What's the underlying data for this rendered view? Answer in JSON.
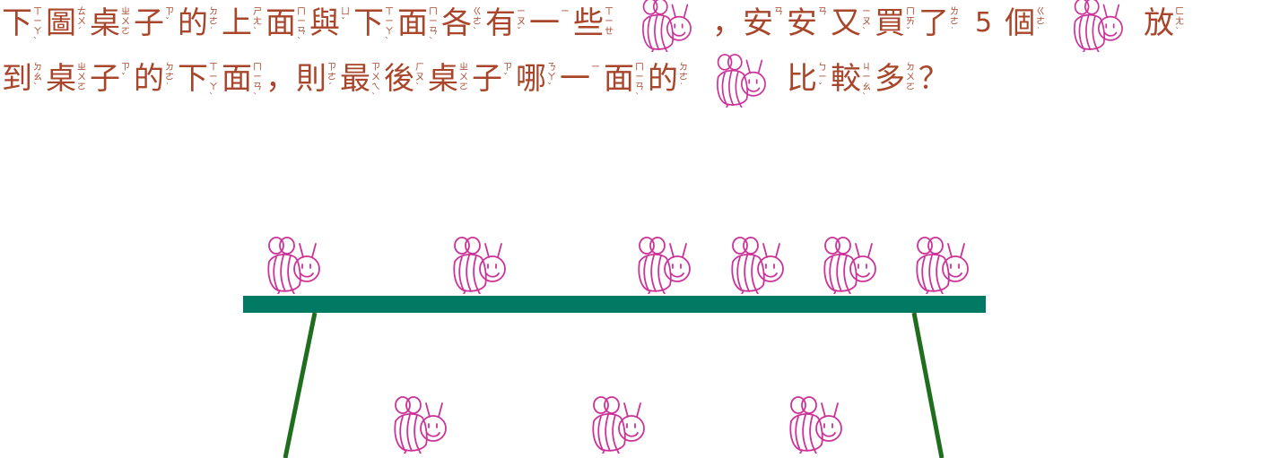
{
  "question": {
    "line1": [
      {
        "t": "char",
        "zh": "下",
        "zy": "ㄒㄧㄚˋ"
      },
      {
        "t": "char",
        "zh": "圖",
        "zy": "ㄊㄨˊ"
      },
      {
        "t": "char",
        "zh": "桌",
        "zy": "ㄓㄨㄛ"
      },
      {
        "t": "char",
        "zh": "子",
        "zy": "ㄗˇ"
      },
      {
        "t": "char",
        "zh": "的",
        "zy": "ㄉㄜ˙"
      },
      {
        "t": "char",
        "zh": "上",
        "zy": "ㄕㄤˋ"
      },
      {
        "t": "char",
        "zh": "面",
        "zy": "ㄇㄧㄢˋ"
      },
      {
        "t": "char",
        "zh": "與",
        "zy": "ㄩˇ"
      },
      {
        "t": "char",
        "zh": "下",
        "zy": "ㄒㄧㄚˋ"
      },
      {
        "t": "char",
        "zh": "面",
        "zy": "ㄇㄧㄢˋ"
      },
      {
        "t": "char",
        "zh": "各",
        "zy": "ㄍㄜˋ"
      },
      {
        "t": "char",
        "zh": "有",
        "zy": "ㄧㄡˇ"
      },
      {
        "t": "char",
        "zh": "一",
        "zy": "ㄧ"
      },
      {
        "t": "char",
        "zh": "些",
        "zy": "ㄒㄧㄝ"
      },
      {
        "t": "bee"
      },
      {
        "t": "plain",
        "text": "，"
      },
      {
        "t": "char",
        "zh": "安",
        "zy": "ㄢ"
      },
      {
        "t": "char",
        "zh": "安",
        "zy": "ㄢ"
      },
      {
        "t": "char",
        "zh": "又",
        "zy": "ㄧㄡˋ"
      },
      {
        "t": "char",
        "zh": "買",
        "zy": "ㄇㄞˇ"
      },
      {
        "t": "char",
        "zh": "了",
        "zy": "ㄌㄜ˙"
      },
      {
        "t": "num",
        "text": "5"
      },
      {
        "t": "char",
        "zh": "個",
        "zy": "ㄍㄜ˙"
      },
      {
        "t": "bee"
      },
      {
        "t": "char",
        "zh": "放",
        "zy": "ㄈㄤˋ"
      }
    ],
    "line2": [
      {
        "t": "char",
        "zh": "到",
        "zy": "ㄉㄠˋ"
      },
      {
        "t": "char",
        "zh": "桌",
        "zy": "ㄓㄨㄛ"
      },
      {
        "t": "char",
        "zh": "子",
        "zy": "ㄗˇ"
      },
      {
        "t": "char",
        "zh": "的",
        "zy": "ㄉㄜ˙"
      },
      {
        "t": "char",
        "zh": "下",
        "zy": "ㄒㄧㄚˋ"
      },
      {
        "t": "char",
        "zh": "面",
        "zy": "ㄇㄧㄢˋ"
      },
      {
        "t": "plain",
        "text": "，"
      },
      {
        "t": "char",
        "zh": "則",
        "zy": "ㄗㄜˊ"
      },
      {
        "t": "char",
        "zh": "最",
        "zy": "ㄗㄨㄟˋ"
      },
      {
        "t": "char",
        "zh": "後",
        "zy": "ㄏㄡˋ"
      },
      {
        "t": "char",
        "zh": "桌",
        "zy": "ㄓㄨㄛ"
      },
      {
        "t": "char",
        "zh": "子",
        "zy": "ㄗˇ"
      },
      {
        "t": "char",
        "zh": "哪",
        "zy": "ㄋㄚˇ"
      },
      {
        "t": "char",
        "zh": "一",
        "zy": "ㄧ"
      },
      {
        "t": "char",
        "zh": "面",
        "zy": "ㄇㄧㄢˋ"
      },
      {
        "t": "char",
        "zh": "的",
        "zy": "ㄉㄜ˙"
      },
      {
        "t": "bee"
      },
      {
        "t": "char",
        "zh": "比",
        "zy": "ㄅㄧˇ"
      },
      {
        "t": "char",
        "zh": "較",
        "zy": "ㄐㄧㄠˋ"
      },
      {
        "t": "char",
        "zh": "多",
        "zy": "ㄉㄨㄛ"
      },
      {
        "t": "plain",
        "text": "？"
      }
    ]
  },
  "scene": {
    "bees_on_table": 6,
    "bees_under_table": 3,
    "colors": {
      "bee": "#cc3399",
      "table_top": "#007a63",
      "table_legs": "#1e6e1e",
      "text": "#a8452a"
    },
    "icons": [
      "bee-icon",
      "table-icon"
    ]
  }
}
